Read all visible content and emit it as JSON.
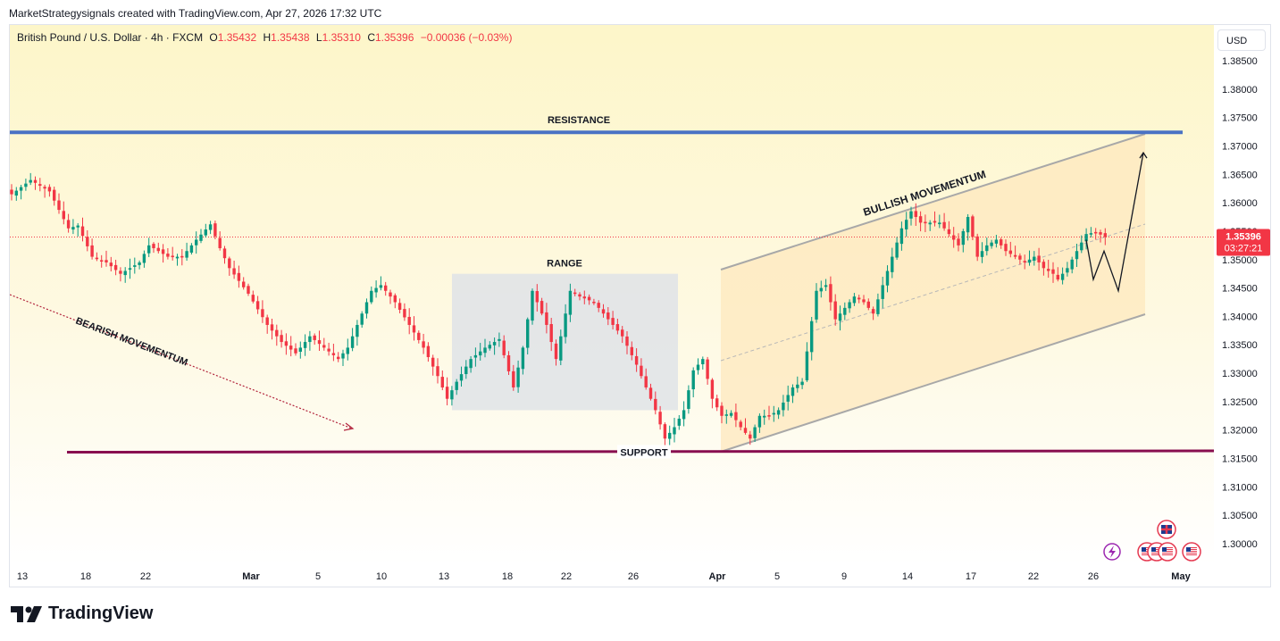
{
  "header": {
    "credit": "MarketStrategysignals created with TradingView.com, Apr 27, 2026 17:32 UTC"
  },
  "symbol": {
    "name": "British Pound / U.S. Dollar · 4h · FXCM",
    "o_label": "O",
    "o_value": "1.35432",
    "h_label": "H",
    "h_value": "1.35438",
    "l_label": "L",
    "l_value": "1.35310",
    "c_label": "C",
    "c_value": "1.35396",
    "change": "−0.00036 (−0.03%)"
  },
  "currency": "USD",
  "last_price": {
    "value": "1.35396",
    "countdown": "03:27:21"
  },
  "footer": {
    "brand": "TradingView"
  },
  "colors": {
    "bull": "#089981",
    "bear": "#f23645",
    "resistance": "#4a72c4",
    "support": "#880e4f",
    "channel": "#a8a8a8",
    "range_box": "#dfe3e8"
  },
  "chart_data": {
    "type": "candlestick",
    "symbol": "GBPUSD",
    "timeframe": "4h",
    "ylim": [
      1.295,
      1.39
    ],
    "y_ticks": [
      "1.38500",
      "1.38000",
      "1.37500",
      "1.37000",
      "1.36500",
      "1.36000",
      "1.35500",
      "1.35000",
      "1.34500",
      "1.34000",
      "1.33500",
      "1.33000",
      "1.32500",
      "1.32000",
      "1.31500",
      "1.31000",
      "1.30500",
      "1.30000"
    ],
    "x_ticks": [
      {
        "label": "13",
        "bold": false
      },
      {
        "label": "18",
        "bold": false
      },
      {
        "label": "22",
        "bold": false
      },
      {
        "label": "Mar",
        "bold": true
      },
      {
        "label": "5",
        "bold": false
      },
      {
        "label": "10",
        "bold": false
      },
      {
        "label": "13",
        "bold": false
      },
      {
        "label": "18",
        "bold": false
      },
      {
        "label": "22",
        "bold": false
      },
      {
        "label": "26",
        "bold": false
      },
      {
        "label": "Apr",
        "bold": true
      },
      {
        "label": "5",
        "bold": false
      },
      {
        "label": "9",
        "bold": false
      },
      {
        "label": "14",
        "bold": false
      },
      {
        "label": "17",
        "bold": false
      },
      {
        "label": "22",
        "bold": false
      },
      {
        "label": "26",
        "bold": false
      },
      {
        "label": "May",
        "bold": true
      }
    ],
    "close_path": [
      [
        0,
        1.3615
      ],
      [
        4,
        1.364
      ],
      [
        8,
        1.362
      ],
      [
        12,
        1.3555
      ],
      [
        14,
        1.356
      ],
      [
        17,
        1.3505
      ],
      [
        20,
        1.3495
      ],
      [
        23,
        1.3475
      ],
      [
        27,
        1.3495
      ],
      [
        29,
        1.3525
      ],
      [
        33,
        1.3505
      ],
      [
        36,
        1.3505
      ],
      [
        39,
        1.3535
      ],
      [
        42,
        1.3562
      ],
      [
        44,
        1.352
      ],
      [
        46,
        1.3485
      ],
      [
        50,
        1.344
      ],
      [
        54,
        1.3385
      ],
      [
        57,
        1.3355
      ],
      [
        60,
        1.3335
      ],
      [
        63,
        1.3365
      ],
      [
        66,
        1.3345
      ],
      [
        69,
        1.3325
      ],
      [
        71,
        1.3345
      ],
      [
        73,
        1.3385
      ],
      [
        76,
        1.3445
      ],
      [
        78,
        1.3455
      ],
      [
        81,
        1.3425
      ],
      [
        84,
        1.3385
      ],
      [
        87,
        1.3345
      ],
      [
        90,
        1.3295
      ],
      [
        92,
        1.3255
      ],
      [
        94,
        1.3285
      ],
      [
        97,
        1.3325
      ],
      [
        100,
        1.3345
      ],
      [
        103,
        1.336
      ],
      [
        106,
        1.3275
      ],
      [
        108,
        1.3345
      ],
      [
        110,
        1.3445
      ],
      [
        113,
        1.3385
      ],
      [
        115,
        1.3325
      ],
      [
        118,
        1.3445
      ],
      [
        120,
        1.3435
      ],
      [
        123,
        1.3425
      ],
      [
        126,
        1.3395
      ],
      [
        129,
        1.3365
      ],
      [
        132,
        1.3315
      ],
      [
        134,
        1.3275
      ],
      [
        136,
        1.3235
      ],
      [
        138,
        1.3185
      ],
      [
        140,
        1.3205
      ],
      [
        142,
        1.3235
      ],
      [
        144,
        1.3305
      ],
      [
        146,
        1.3325
      ],
      [
        148,
        1.3255
      ],
      [
        150,
        1.3225
      ],
      [
        152,
        1.323
      ],
      [
        154,
        1.3205
      ],
      [
        156,
        1.3185
      ],
      [
        158,
        1.3225
      ],
      [
        160,
        1.3225
      ],
      [
        162,
        1.3235
      ],
      [
        165,
        1.3275
      ],
      [
        167,
        1.3285
      ],
      [
        170,
        1.3445
      ],
      [
        172,
        1.3455
      ],
      [
        174,
        1.3395
      ],
      [
        176,
        1.3415
      ],
      [
        178,
        1.3435
      ],
      [
        180,
        1.3425
      ],
      [
        182,
        1.3405
      ],
      [
        184,
        1.3455
      ],
      [
        186,
        1.3505
      ],
      [
        188,
        1.3555
      ],
      [
        190,
        1.3585
      ],
      [
        192,
        1.3565
      ],
      [
        194,
        1.3565
      ],
      [
        196,
        1.3565
      ],
      [
        198,
        1.3545
      ],
      [
        200,
        1.3525
      ],
      [
        202,
        1.3575
      ],
      [
        204,
        1.3505
      ],
      [
        206,
        1.3525
      ],
      [
        208,
        1.3535
      ],
      [
        210,
        1.3515
      ],
      [
        212,
        1.3505
      ],
      [
        214,
        1.3495
      ],
      [
        216,
        1.3505
      ],
      [
        218,
        1.3485
      ],
      [
        220,
        1.3475
      ],
      [
        221,
        1.3465
      ],
      [
        223,
        1.3485
      ],
      [
        225,
        1.3515
      ],
      [
        227,
        1.3545
      ],
      [
        229,
        1.3548
      ],
      [
        231,
        1.354
      ]
    ],
    "annotations": {
      "resistance": {
        "label": "RESISTANCE",
        "price": 1.3724
      },
      "support": {
        "label": "SUPPORT",
        "price": 1.3161
      },
      "range": {
        "label": "RANGE",
        "top": 1.3475,
        "bottom": 1.3235
      },
      "bearish": {
        "label": "BEARISH MOVEMENTUM"
      },
      "bullish": {
        "label": "BULLISH MOVEMENTUM"
      },
      "projection": {
        "points": [
          [
            1.3535,
            ""
          ],
          [
            1.3465,
            ""
          ],
          [
            1.3515,
            ""
          ],
          [
            1.3445,
            ""
          ],
          [
            1.3688,
            ""
          ]
        ]
      }
    }
  }
}
